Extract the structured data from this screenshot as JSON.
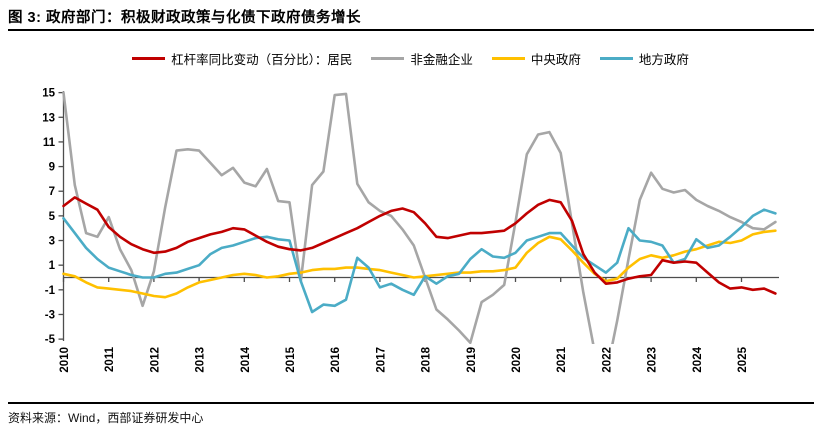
{
  "header": {
    "title": "图 3: 政府部门：积极财政政策与化债下政府债务增长"
  },
  "footer": {
    "source": "资料来源：Wind，西部证券研发中心"
  },
  "chart_data": {
    "type": "line",
    "title": "政府部门：积极财政政策与化债下政府债务增长",
    "x_unit": "quarter",
    "x_start": "2010Q1",
    "x_end": "2025Q4",
    "x_tick_labels": [
      "2010",
      "2011",
      "2012",
      "2013",
      "2014",
      "2015",
      "2016",
      "2017",
      "2018",
      "2019",
      "2020",
      "2021",
      "2022",
      "2023",
      "2024",
      "2025"
    ],
    "ylim": [
      -5,
      15
    ],
    "y_tick_labels": [
      "15",
      "13",
      "11",
      "9",
      "7",
      "5",
      "3",
      "1",
      "-1",
      "-3",
      "-5"
    ],
    "grid": false,
    "legend_position": "top",
    "series": [
      {
        "key": "resident",
        "name": "杠杆率同比变动（百分比）：居民",
        "color": "#C00000",
        "values": [
          5.8,
          6.5,
          6.0,
          5.5,
          4.1,
          3.3,
          2.7,
          2.3,
          2.0,
          2.1,
          2.4,
          2.9,
          3.2,
          3.5,
          3.7,
          4.0,
          3.9,
          3.4,
          2.9,
          2.5,
          2.3,
          2.2,
          2.4,
          2.8,
          3.2,
          3.6,
          4.0,
          4.5,
          5.0,
          5.4,
          5.6,
          5.3,
          4.4,
          3.3,
          3.2,
          3.4,
          3.6,
          3.6,
          3.7,
          3.8,
          4.4,
          5.2,
          5.9,
          6.3,
          6.1,
          4.6,
          1.9,
          0.4,
          -0.5,
          -0.4,
          -0.1,
          0.1,
          0.2,
          1.4,
          1.2,
          1.3,
          1.2,
          0.4,
          -0.4,
          -0.9,
          -0.8,
          -1.0,
          -0.9,
          -1.3
        ]
      },
      {
        "key": "nonfinancial-corp",
        "name": "非金融企业",
        "color": "#A6A6A6",
        "values": [
          15.0,
          7.5,
          3.6,
          3.3,
          4.9,
          2.3,
          0.6,
          -2.3,
          0.5,
          5.7,
          10.3,
          10.4,
          10.3,
          9.3,
          8.3,
          8.9,
          7.7,
          7.4,
          8.8,
          6.2,
          6.1,
          -0.3,
          7.5,
          8.6,
          14.8,
          14.9,
          7.6,
          6.1,
          5.4,
          5.0,
          3.9,
          2.6,
          0.0,
          -2.6,
          -3.4,
          -4.3,
          -5.3,
          -2.0,
          -1.4,
          -0.6,
          4.5,
          10.0,
          11.6,
          11.8,
          10.1,
          4.4,
          -1.2,
          -6.0,
          -8.0,
          -3.5,
          1.5,
          6.3,
          8.5,
          7.2,
          6.9,
          7.1,
          6.3,
          5.8,
          5.4,
          4.9,
          4.5,
          4.0,
          3.9,
          4.5
        ]
      },
      {
        "key": "central-gov",
        "name": "中央政府",
        "color": "#FFC000",
        "values": [
          0.3,
          0.1,
          -0.4,
          -0.8,
          -0.9,
          -1.0,
          -1.1,
          -1.3,
          -1.5,
          -1.6,
          -1.3,
          -0.8,
          -0.4,
          -0.2,
          0.0,
          0.2,
          0.3,
          0.2,
          0.0,
          0.1,
          0.3,
          0.4,
          0.6,
          0.7,
          0.7,
          0.8,
          0.8,
          0.7,
          0.6,
          0.4,
          0.2,
          0.0,
          0.1,
          0.2,
          0.3,
          0.4,
          0.4,
          0.5,
          0.5,
          0.6,
          0.8,
          2.0,
          2.8,
          3.3,
          3.1,
          2.2,
          1.2,
          0.3,
          -0.3,
          -0.1,
          0.8,
          1.5,
          1.8,
          1.6,
          1.8,
          2.1,
          2.3,
          2.6,
          2.9,
          2.8,
          3.0,
          3.5,
          3.7,
          3.8
        ]
      },
      {
        "key": "local-gov",
        "name": "地方政府",
        "color": "#4BACC6",
        "values": [
          4.8,
          3.6,
          2.4,
          1.5,
          0.8,
          0.5,
          0.2,
          0.0,
          0.0,
          0.3,
          0.4,
          0.7,
          1.0,
          1.9,
          2.4,
          2.6,
          2.9,
          3.2,
          3.3,
          3.1,
          3.0,
          -0.3,
          -2.8,
          -2.2,
          -2.3,
          -1.8,
          1.6,
          0.8,
          -0.8,
          -0.5,
          -1.0,
          -1.4,
          0.1,
          -0.5,
          0.1,
          0.3,
          1.5,
          2.3,
          1.7,
          1.6,
          2.0,
          3.0,
          3.3,
          3.6,
          3.6,
          2.6,
          1.6,
          1.0,
          0.4,
          1.2,
          4.0,
          3.0,
          2.9,
          2.6,
          1.2,
          1.5,
          3.1,
          2.4,
          2.6,
          3.3,
          4.1,
          5.0,
          5.5,
          5.2
        ]
      }
    ]
  }
}
